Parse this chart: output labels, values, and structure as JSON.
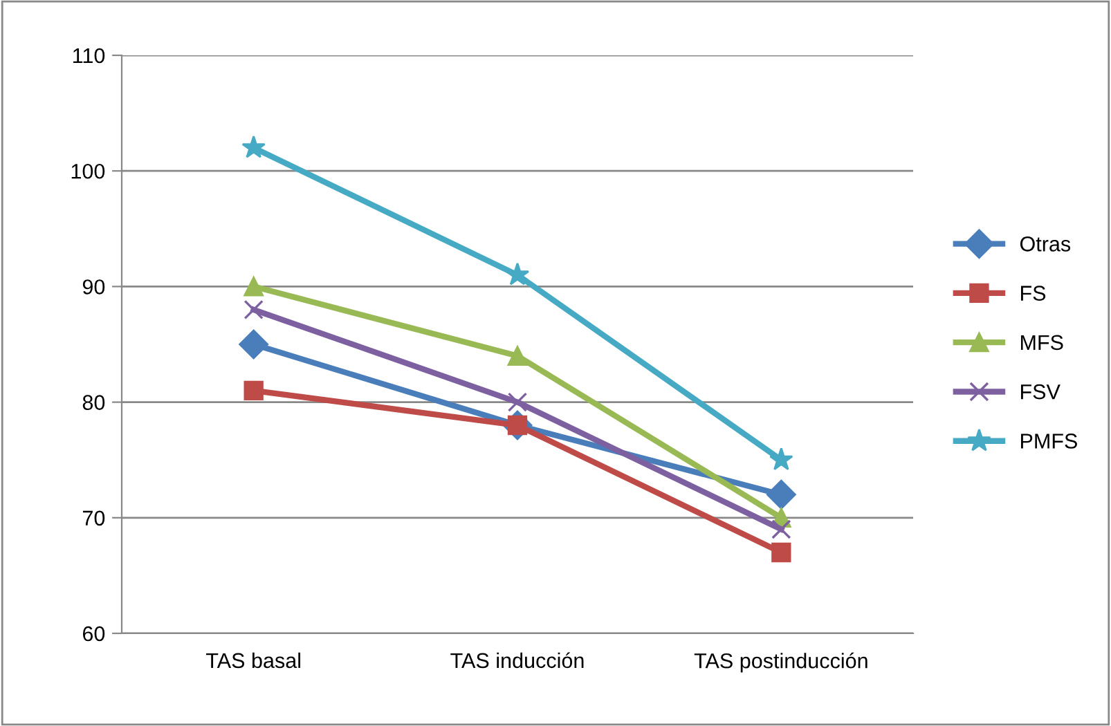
{
  "chart_data": {
    "type": "line",
    "categories": [
      "TAS basal",
      "TAS inducción",
      "TAS postinducción"
    ],
    "series": [
      {
        "name": "Otras",
        "color": "#4a7ebb",
        "marker": "diamond",
        "values": [
          85,
          78,
          72
        ]
      },
      {
        "name": "FS",
        "color": "#be4b48",
        "marker": "square",
        "values": [
          81,
          78,
          67
        ]
      },
      {
        "name": "MFS",
        "color": "#98b954",
        "marker": "triangle",
        "values": [
          90,
          84,
          70
        ]
      },
      {
        "name": "FSV",
        "color": "#7d60a0",
        "marker": "cross",
        "values": [
          88,
          80,
          69
        ]
      },
      {
        "name": "PMFS",
        "color": "#46aac5",
        "marker": "star",
        "values": [
          102,
          91,
          75
        ]
      }
    ],
    "ylim": [
      60,
      110
    ],
    "yticks": [
      60,
      70,
      80,
      90,
      100,
      110
    ],
    "grid": "y",
    "legend": "right",
    "line_style": "solid"
  }
}
